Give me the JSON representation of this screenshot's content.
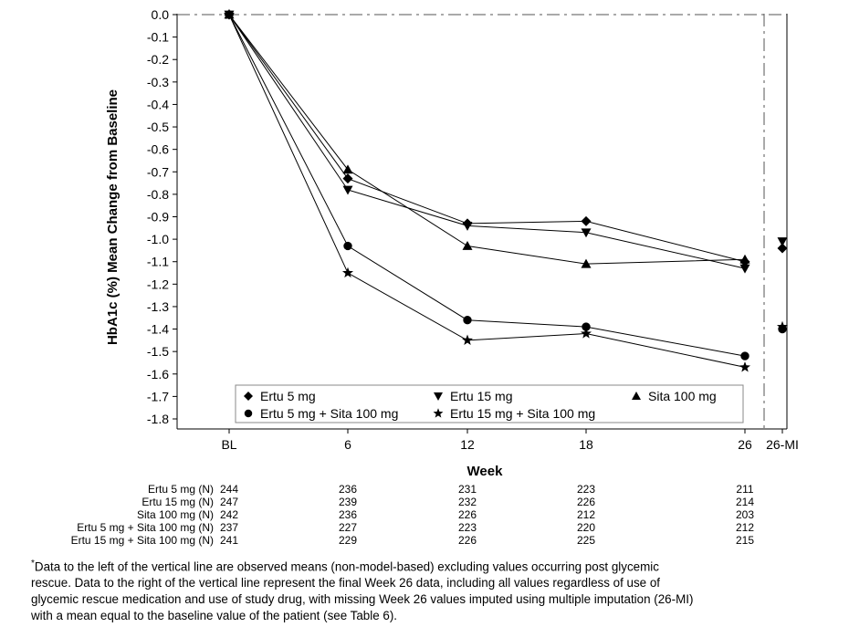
{
  "chart_data": {
    "type": "line",
    "ylabel": "HbA1c (%) Mean Change from Baseline",
    "xlabel": "Week",
    "ylim": [
      -1.8,
      0.0
    ],
    "yticks": [
      "0.0",
      "-0.1",
      "-0.2",
      "-0.3",
      "-0.4",
      "-0.5",
      "-0.6",
      "-0.7",
      "-0.8",
      "-0.9",
      "-1.0",
      "-1.1",
      "-1.2",
      "-1.3",
      "-1.4",
      "-1.5",
      "-1.6",
      "-1.7",
      "-1.8"
    ],
    "categories": [
      "BL",
      "6",
      "12",
      "18",
      "26"
    ],
    "extra_category": "26-MI",
    "series": [
      {
        "name": "Ertu 5 mg",
        "marker": "diamond",
        "values": [
          0.0,
          -0.73,
          -0.93,
          -0.92,
          -1.1
        ],
        "mi": -1.04
      },
      {
        "name": "Ertu 15 mg",
        "marker": "triangle-down",
        "values": [
          0.0,
          -0.78,
          -0.94,
          -0.97,
          -1.13
        ],
        "mi": -1.01
      },
      {
        "name": "Sita 100 mg",
        "marker": "triangle-up",
        "values": [
          0.0,
          -0.69,
          -1.03,
          -1.11,
          -1.09
        ],
        "mi": null
      },
      {
        "name": "Ertu 5 mg + Sita 100 mg",
        "marker": "circle",
        "values": [
          0.0,
          -1.03,
          -1.36,
          -1.39,
          -1.52
        ],
        "mi": -1.4
      },
      {
        "name": "Ertu 15 mg + Sita 100 mg",
        "marker": "star",
        "values": [
          0.0,
          -1.15,
          -1.45,
          -1.42,
          -1.57
        ],
        "mi": -1.39
      }
    ],
    "counts": {
      "labels": [
        "Ertu 5 mg (N)",
        "Ertu 15 mg (N)",
        "Sita 100 mg (N)",
        "Ertu 5 mg + Sita 100 mg (N)",
        "Ertu 15 mg + Sita 100 mg (N)"
      ],
      "rows": [
        [
          "244",
          "236",
          "231",
          "223",
          "211"
        ],
        [
          "247",
          "239",
          "232",
          "226",
          "214"
        ],
        [
          "242",
          "236",
          "226",
          "212",
          "203"
        ],
        [
          "237",
          "227",
          "223",
          "220",
          "212"
        ],
        [
          "241",
          "229",
          "226",
          "225",
          "215"
        ]
      ]
    }
  },
  "footnote": {
    "marker": "*",
    "lines": [
      "Data to the left of the vertical line are observed means (non-model-based) excluding values occurring post glycemic",
      "rescue. Data to the right of the vertical line represent the final Week 26 data, including all values regardless of use of",
      "glycemic rescue medication and use of study drug, with missing Week 26 values imputed using multiple imputation (26-MI)",
      "with a mean equal to the baseline value of the patient (see Table 6)."
    ]
  }
}
